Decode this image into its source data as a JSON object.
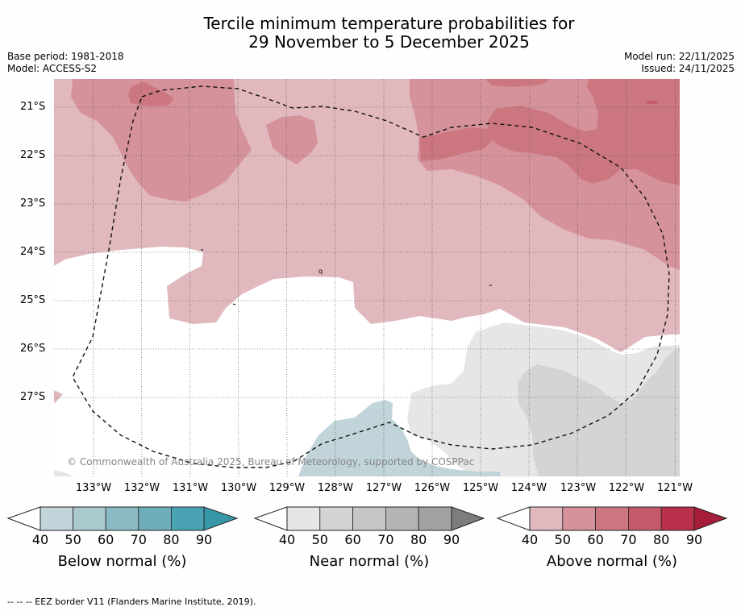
{
  "header": {
    "title_line1": "Tercile minimum temperature probabilities for",
    "title_line2": "29 November to 5 December 2025",
    "base_period": "Base period: 1981-2018",
    "model": "Model: ACCESS-S2",
    "model_run": "Model run: 22/11/2025",
    "issued": "Issued: 24/11/2025"
  },
  "map": {
    "lat_labels": [
      "21°S",
      "22°S",
      "23°S",
      "24°S",
      "25°S",
      "26°S",
      "27°S"
    ],
    "lon_labels": [
      "133°W",
      "132°W",
      "131°W",
      "130°W",
      "129°W",
      "128°W",
      "127°W",
      "126°W",
      "125°W",
      "124°W",
      "123°W",
      "122°W",
      "121°W"
    ],
    "copyright": "© Commonwealth of Australia 2025, Bureau of Meteorology, supported by COSPPac",
    "island_marker": "q"
  },
  "colorbars": {
    "ticks": [
      "40",
      "50",
      "60",
      "70",
      "80",
      "90"
    ],
    "below": {
      "title": "Below normal (%)",
      "colors": [
        "#c0d4da",
        "#a9c9cf",
        "#8bbac4",
        "#6fadba",
        "#4aa3b2",
        "#3797a6"
      ]
    },
    "near": {
      "title": "Near normal (%)",
      "colors": [
        "#e6e6e6",
        "#d4d4d4",
        "#c6c6c6",
        "#b4b4b4",
        "#a2a2a2",
        "#7d7d7d"
      ]
    },
    "above": {
      "title": "Above normal (%)",
      "colors": [
        "#e0b8bd",
        "#d6929b",
        "#cc7780",
        "#c45a69",
        "#b8304a",
        "#a61c39"
      ]
    }
  },
  "legend": {
    "eez_label": "--  --  -- EEZ border V11 (Flanders Marine Institute, 2019)."
  }
}
